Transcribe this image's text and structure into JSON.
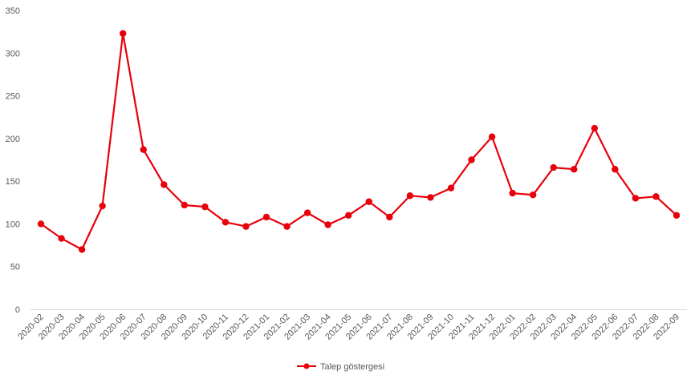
{
  "chart_data": {
    "type": "line",
    "title": "",
    "xlabel": "",
    "ylabel": "",
    "ylim": [
      0,
      350
    ],
    "yticks": [
      0,
      50,
      100,
      150,
      200,
      250,
      300,
      350
    ],
    "grid": false,
    "legend_position": "bottom",
    "categories": [
      "2020-02",
      "2020-03",
      "2020-04",
      "2020-05",
      "2020-06",
      "2020-07",
      "2020-08",
      "2020-09",
      "2020-10",
      "2020-11",
      "2020-12",
      "2021-01",
      "2021-02",
      "2021-03",
      "2021-04",
      "2021-05",
      "2021-06",
      "2021-07",
      "2021-08",
      "2021-09",
      "2021-10",
      "2021-11",
      "2021-12",
      "2022-01",
      "2022-02",
      "2022-03",
      "2022-04",
      "2022-05",
      "2022-06",
      "2022-07",
      "2022-08",
      "2022-09"
    ],
    "series": [
      {
        "name": "Talep göstergesi",
        "color": "#e8000b",
        "values": [
          100,
          83,
          70,
          121,
          323,
          187,
          146,
          122,
          120,
          102,
          97,
          108,
          97,
          113,
          99,
          110,
          126,
          108,
          133,
          131,
          142,
          175,
          202,
          136,
          134,
          166,
          164,
          212,
          164,
          130,
          132,
          110
        ]
      }
    ]
  }
}
